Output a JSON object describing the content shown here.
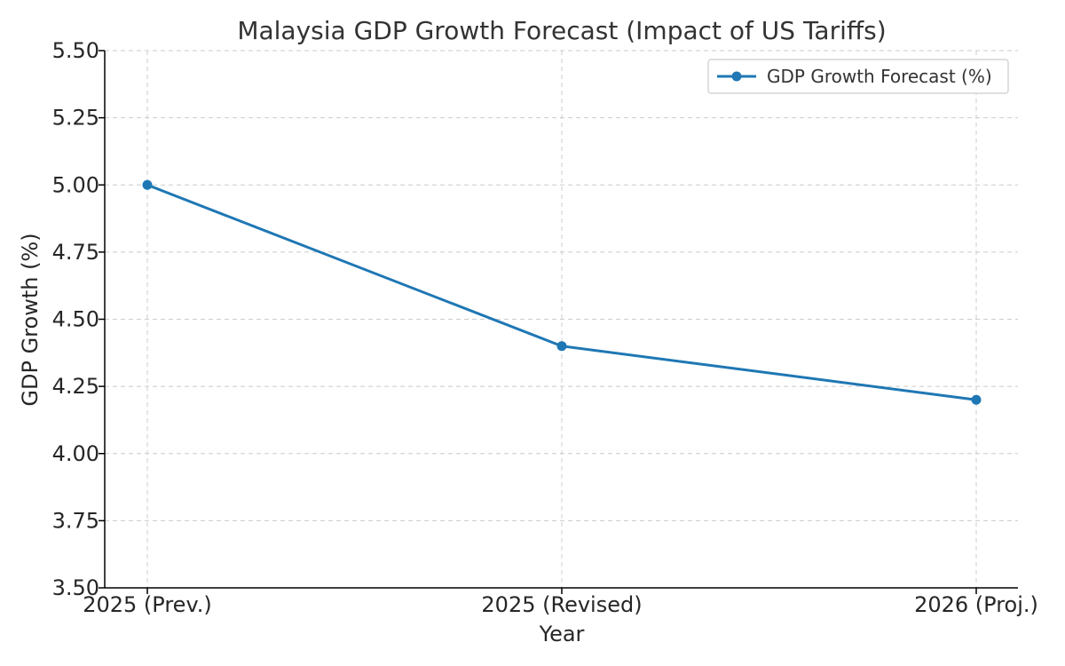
{
  "chart_data": {
    "type": "line",
    "title": "Malaysia GDP Growth Forecast (Impact of US Tariffs)",
    "xlabel": "Year",
    "ylabel": "GDP Growth (%)",
    "categories": [
      "2025 (Prev.)",
      "2025 (Revised)",
      "2026 (Proj.)"
    ],
    "ylim": [
      3.5,
      5.5
    ],
    "yticks": [
      "3.50",
      "3.75",
      "4.00",
      "4.25",
      "4.50",
      "4.75",
      "5.00",
      "5.25",
      "5.50"
    ],
    "grid": true,
    "legend_position": "top-right",
    "series": [
      {
        "name": "GDP Growth Forecast (%)",
        "values": [
          5.0,
          4.4,
          4.2
        ],
        "color": "#1f77b4",
        "marker": "circle"
      }
    ]
  }
}
